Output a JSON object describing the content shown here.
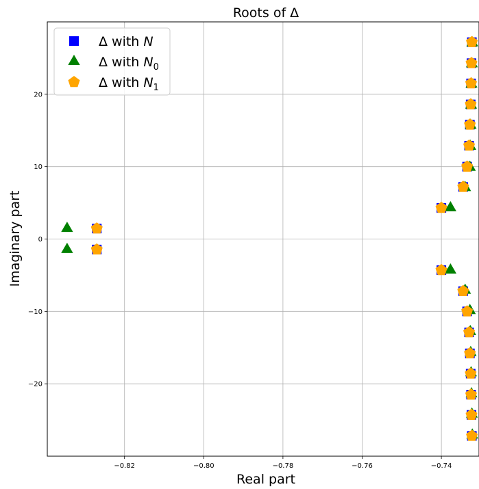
{
  "chart_data": {
    "type": "scatter",
    "title": "Roots of Δ",
    "xlabel": "Real part",
    "ylabel": "Imaginary part",
    "xlim": [
      -0.8395,
      -0.7305
    ],
    "ylim": [
      -30,
      30
    ],
    "xticks": [
      -0.82,
      -0.8,
      -0.78,
      -0.76,
      -0.74
    ],
    "xtick_labels": [
      "−0.82",
      "−0.80",
      "−0.78",
      "−0.76",
      "−0.74"
    ],
    "yticks": [
      -20,
      -10,
      0,
      10,
      20
    ],
    "ytick_labels": [
      "−20",
      "−10",
      "0",
      "10",
      "20"
    ],
    "grid": true,
    "legend_position": "top-left",
    "series": [
      {
        "name": "Δ with N",
        "legend_main": "Δ with ",
        "legend_var": "N",
        "legend_sub": "",
        "marker": "square",
        "color": "#0000ff",
        "points": [
          [
            -0.827,
            1.45
          ],
          [
            -0.827,
            -1.45
          ],
          [
            -0.74,
            4.3
          ],
          [
            -0.74,
            -4.3
          ],
          [
            -0.7345,
            7.2
          ],
          [
            -0.7345,
            -7.2
          ],
          [
            -0.7335,
            10.0
          ],
          [
            -0.7335,
            -10.0
          ],
          [
            -0.733,
            12.9
          ],
          [
            -0.733,
            -12.9
          ],
          [
            -0.7328,
            15.8
          ],
          [
            -0.7328,
            -15.8
          ],
          [
            -0.7326,
            18.6
          ],
          [
            -0.7326,
            -18.6
          ],
          [
            -0.7325,
            21.5
          ],
          [
            -0.7325,
            -21.5
          ],
          [
            -0.7324,
            24.3
          ],
          [
            -0.7324,
            -24.3
          ],
          [
            -0.7323,
            27.2
          ],
          [
            -0.7323,
            -27.2
          ]
        ]
      },
      {
        "name": "Δ with N0",
        "legend_main": "Δ with ",
        "legend_var": "N",
        "legend_sub": "0",
        "marker": "triangle",
        "color": "#008000",
        "points": [
          [
            -0.8345,
            1.45
          ],
          [
            -0.8345,
            -1.45
          ],
          [
            -0.7377,
            4.3
          ],
          [
            -0.7377,
            -4.3
          ],
          [
            -0.734,
            7.1
          ],
          [
            -0.734,
            -7.1
          ],
          [
            -0.7328,
            9.9
          ],
          [
            -0.7328,
            -9.9
          ],
          [
            -0.7327,
            12.8
          ],
          [
            -0.7327,
            -12.8
          ],
          [
            -0.7326,
            15.7
          ],
          [
            -0.7326,
            -15.7
          ],
          [
            -0.7325,
            18.5
          ],
          [
            -0.7325,
            -18.5
          ],
          [
            -0.7324,
            21.4
          ],
          [
            -0.7324,
            -21.4
          ],
          [
            -0.7323,
            24.2
          ],
          [
            -0.7323,
            -24.2
          ],
          [
            -0.7322,
            27.1
          ],
          [
            -0.7322,
            -27.1
          ]
        ]
      },
      {
        "name": "Δ with N1",
        "legend_main": "Δ with ",
        "legend_var": "N",
        "legend_sub": "1",
        "marker": "pentagon",
        "color": "#ffa500",
        "points": [
          [
            -0.827,
            1.45
          ],
          [
            -0.827,
            -1.45
          ],
          [
            -0.74,
            4.3
          ],
          [
            -0.74,
            -4.3
          ],
          [
            -0.7345,
            7.2
          ],
          [
            -0.7345,
            -7.2
          ],
          [
            -0.7335,
            10.0
          ],
          [
            -0.7335,
            -10.0
          ],
          [
            -0.733,
            12.9
          ],
          [
            -0.733,
            -12.9
          ],
          [
            -0.7328,
            15.8
          ],
          [
            -0.7328,
            -15.8
          ],
          [
            -0.7326,
            18.6
          ],
          [
            -0.7326,
            -18.6
          ],
          [
            -0.7325,
            21.5
          ],
          [
            -0.7325,
            -21.5
          ],
          [
            -0.7324,
            24.3
          ],
          [
            -0.7324,
            -24.3
          ],
          [
            -0.7323,
            27.2
          ],
          [
            -0.7323,
            -27.2
          ]
        ]
      }
    ]
  }
}
